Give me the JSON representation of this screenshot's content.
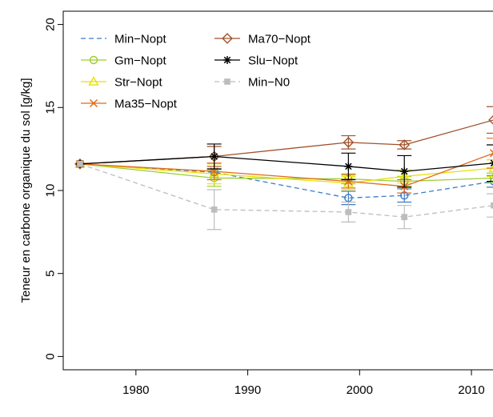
{
  "chart_data": {
    "type": "line",
    "title": "",
    "xlabel": "",
    "ylabel": "Teneur en carbone organique du sol [g/kg]",
    "xlim": [
      1973.5,
      2012.5
    ],
    "ylim": [
      -0.8,
      20.8
    ],
    "x_ticks": [
      "1980",
      "1990",
      "2000",
      "2010"
    ],
    "y_ticks": [
      "0",
      "5",
      "10",
      "15",
      "20"
    ],
    "grid": false,
    "legend_position": "top-left",
    "series": [
      {
        "name": "Min−Nopt",
        "color": "#3b7dc4",
        "line": "dashed",
        "marker": "circle",
        "x": [
          1975,
          2004,
          2012
        ],
        "y": [
          11.6,
          9.7,
          10.55
        ],
        "points": [
          {
            "x": 1975,
            "y": 11.6
          },
          {
            "x": 1987,
            "y": 11.1
          },
          {
            "x": 1999,
            "y": 9.55,
            "err": 0.4
          },
          {
            "x": 2004,
            "y": 9.7,
            "err": 0.4
          },
          {
            "x": 2012,
            "y": 10.55,
            "err": 0.35
          }
        ]
      },
      {
        "name": "Gm−Nopt",
        "color": "#9acd32",
        "line": "solid",
        "marker": "circle",
        "points": [
          {
            "x": 1975,
            "y": 11.6
          },
          {
            "x": 1987,
            "y": 10.75,
            "err": 0.5
          },
          {
            "x": 1999,
            "y": 10.7,
            "err": 0.3
          },
          {
            "x": 2004,
            "y": 10.55,
            "err": 0.3
          },
          {
            "x": 2012,
            "y": 10.75,
            "err": 0.3
          }
        ]
      },
      {
        "name": "Str−Nopt",
        "color": "#e8e000",
        "line": "solid",
        "marker": "triangle",
        "points": [
          {
            "x": 1975,
            "y": 11.6
          },
          {
            "x": 1987,
            "y": 11.0,
            "err": 0.6
          },
          {
            "x": 1999,
            "y": 10.45,
            "err": 0.4
          },
          {
            "x": 2004,
            "y": 10.85,
            "err": 0.4
          },
          {
            "x": 2012,
            "y": 11.35,
            "err": 0.5
          }
        ]
      },
      {
        "name": "Ma35−Nopt",
        "color": "#e06a1b",
        "line": "solid",
        "marker": "x",
        "points": [
          {
            "x": 1975,
            "y": 11.6
          },
          {
            "x": 1987,
            "y": 11.15,
            "err": 0.5
          },
          {
            "x": 1999,
            "y": 10.55,
            "err": 0.4
          },
          {
            "x": 2004,
            "y": 10.25,
            "err": 0.4
          },
          {
            "x": 2012,
            "y": 12.25,
            "err": 0.9
          }
        ]
      },
      {
        "name": "Ma70−Nopt",
        "color": "#a0522d",
        "line": "solid",
        "marker": "diamond",
        "points": [
          {
            "x": 1975,
            "y": 11.6
          },
          {
            "x": 1987,
            "y": 12.05,
            "err": 0.6
          },
          {
            "x": 1999,
            "y": 12.9,
            "err": 0.4
          },
          {
            "x": 2004,
            "y": 12.75,
            "err": 0.25
          },
          {
            "x": 2012,
            "y": 14.25,
            "err": 0.8
          }
        ]
      },
      {
        "name": "Slu−Nopt",
        "color": "#000000",
        "line": "solid",
        "marker": "star",
        "points": [
          {
            "x": 1975,
            "y": 11.6
          },
          {
            "x": 1987,
            "y": 12.05,
            "err": 0.75
          },
          {
            "x": 1999,
            "y": 11.45,
            "err": 0.8
          },
          {
            "x": 2004,
            "y": 11.15,
            "err": 0.95
          },
          {
            "x": 2012,
            "y": 11.65,
            "err": 1.1
          }
        ]
      },
      {
        "name": "Min−N0",
        "color": "#bdbdbd",
        "line": "dashed",
        "marker": "square",
        "points": [
          {
            "x": 1975,
            "y": 11.6
          },
          {
            "x": 1987,
            "y": 8.85,
            "err": 1.2
          },
          {
            "x": 1999,
            "y": 8.7,
            "err": 0.6
          },
          {
            "x": 2004,
            "y": 8.4,
            "err": 0.7
          },
          {
            "x": 2012,
            "y": 9.1,
            "err": 0.7
          }
        ]
      }
    ]
  }
}
